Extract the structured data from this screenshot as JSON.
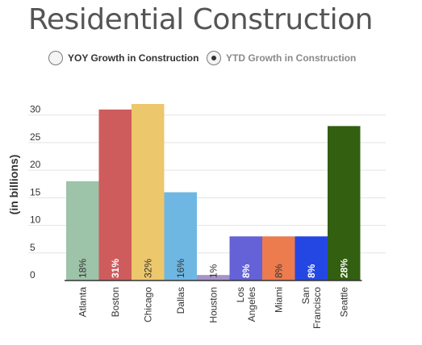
{
  "title": "Residential Construction",
  "toggle": {
    "options": [
      {
        "label": "YOY Growth in Construction",
        "checked": false
      },
      {
        "label": "YTD Growth in Construction",
        "checked": true
      }
    ]
  },
  "chart_data": {
    "type": "bar",
    "ylabel": "(in billions)",
    "ylim": [
      0,
      32
    ],
    "yticks": [
      0,
      5,
      10,
      15,
      20,
      25,
      30
    ],
    "grid": true,
    "categories": [
      {
        "label": [
          "Atlanta"
        ],
        "value": 18,
        "bar_label": "18%",
        "color": "#9dc3a8",
        "label_color": "#333333",
        "label_bold": false
      },
      {
        "label": [
          "Boston"
        ],
        "value": 31,
        "bar_label": "31%",
        "color": "#cf5c5c",
        "label_color": "#ffffff",
        "label_bold": true
      },
      {
        "label": [
          "Chicago"
        ],
        "value": 32,
        "bar_label": "32%",
        "color": "#edc76c",
        "label_color": "#333333",
        "label_bold": false
      },
      {
        "label": [
          "Dallas"
        ],
        "value": 16,
        "bar_label": "16%",
        "color": "#6eb7e3",
        "label_color": "#333333",
        "label_bold": false
      },
      {
        "label": [
          "Houston"
        ],
        "value": 1,
        "bar_label": "1%",
        "color": "#a693c9",
        "label_color": "#333333",
        "label_bold": false
      },
      {
        "label": [
          "Los",
          "Angeles"
        ],
        "value": 8,
        "bar_label": "8%",
        "color": "#6462d6",
        "label_color": "#ffffff",
        "label_bold": true
      },
      {
        "label": [
          "Miami"
        ],
        "value": 8,
        "bar_label": "8%",
        "color": "#ec7b4e",
        "label_color": "#333333",
        "label_bold": false
      },
      {
        "label": [
          "San",
          "Francisco"
        ],
        "value": 8,
        "bar_label": "8%",
        "color": "#2447e3",
        "label_color": "#ffffff",
        "label_bold": true
      },
      {
        "label": [
          "Seattle"
        ],
        "value": 28,
        "bar_label": "28%",
        "color": "#335f10",
        "label_color": "#ffffff",
        "label_bold": true
      }
    ]
  }
}
